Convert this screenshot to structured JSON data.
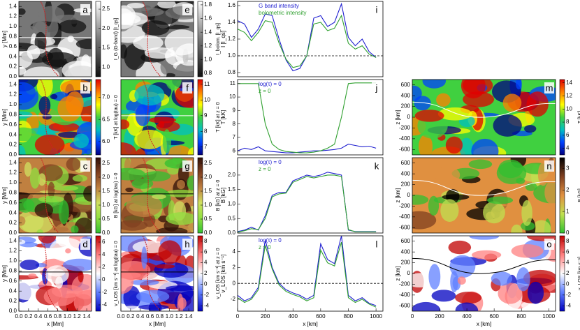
{
  "chart_data": [
    {
      "type": "image",
      "label": "a",
      "ylabel": "y [Mm]",
      "xlim": [
        0,
        1.5
      ],
      "ylim": [
        0,
        1.5
      ],
      "yticks": [
        {
          "value": 0,
          "label": "0.0"
        },
        0.2,
        0.4,
        0.6,
        0.8,
        {
          "value": 1,
          "label": "1.0"
        },
        1.2,
        1.4
      ],
      "slice_y": 0.78,
      "line_color": "#fff",
      "colorbar": {
        "label": "I_G (G-band) [I_qs]",
        "lim": [
          0.75,
          2.7
        ],
        "ticks": [
          {
            "value": 1,
            "label": "1.0"
          },
          1.5,
          {
            "value": 2,
            "label": "2.0"
          },
          2.5
        ],
        "colors": [
          "#111111",
          "#777777",
          "#ffffff"
        ]
      }
    },
    {
      "type": "image",
      "label": "b",
      "ylabel": "y [Mm]",
      "xlim": [
        0,
        1.5
      ],
      "ylim": [
        0,
        1.5
      ],
      "yticks": [
        {
          "value": 0,
          "label": "0.0"
        },
        0.2,
        0.4,
        0.6,
        0.8,
        {
          "value": 1,
          "label": "1.0"
        },
        1.2,
        1.4
      ],
      "slice_y": 0.78,
      "line_color": "#fff",
      "colorbar": {
        "label": "T [kK] at log(tau) = 0",
        "lim": [
          5.7,
          7.4
        ],
        "ticks": [
          {
            "value": 6,
            "label": "6.0"
          },
          6.5,
          {
            "value": 7,
            "label": "7.0"
          }
        ],
        "colors": [
          "#000080",
          "#0040ff",
          "#00c0c0",
          "#40d040",
          "#ffff00",
          "#ff8000",
          "#e00000"
        ]
      }
    },
    {
      "type": "image",
      "label": "c",
      "ylabel": "y [Mm]",
      "xlim": [
        0,
        1.5
      ],
      "ylim": [
        0,
        1.5
      ],
      "yticks": [
        {
          "value": 0,
          "label": "0.0"
        },
        0.2,
        0.4,
        0.6,
        0.8,
        {
          "value": 1,
          "label": "1.0"
        },
        1.2,
        1.4
      ],
      "slice_y": 0.78,
      "line_color": "#000",
      "colorbar": {
        "label": "B [kG] at log(tau) = 0",
        "lim": [
          0,
          2.7
        ],
        "ticks": [
          {
            "value": 0,
            "label": "0.0"
          },
          0.5,
          {
            "value": 1,
            "label": "1.0"
          },
          1.5,
          {
            "value": 2,
            "label": "2.0"
          },
          2.5
        ],
        "colors": [
          "#30c030",
          "#90e040",
          "#d0e060",
          "#c08040",
          "#804020",
          "#301008"
        ]
      }
    },
    {
      "type": "image",
      "label": "d",
      "ylabel": "y [Mm]",
      "xlabel": "x [Mm]",
      "xlim": [
        0,
        1.5
      ],
      "ylim": [
        0,
        1.5
      ],
      "xticks": [
        {
          "value": 0,
          "label": "0.0"
        },
        0.2,
        0.4,
        0.6,
        0.8,
        {
          "value": 1,
          "label": "1.0"
        },
        1.2,
        1.4
      ],
      "yticks": [
        {
          "value": 0,
          "label": "0.0"
        },
        0.2,
        0.4,
        0.6,
        0.8,
        {
          "value": 1,
          "label": "1.0"
        },
        1.2,
        1.4
      ],
      "slice_y": 0.78,
      "line_color": "#000",
      "colorbar": {
        "label": "v_LOS [km s⁻¹] at log(tau) = 0",
        "lim": [
          -5,
          7
        ],
        "ticks": [
          -4,
          -2,
          0,
          2,
          4,
          6
        ],
        "colors": [
          "#0000c0",
          "#6080ff",
          "#ffffff",
          "#ff8080",
          "#c00000"
        ]
      }
    },
    {
      "type": "image",
      "label": "e",
      "xlim": [
        0,
        1.5
      ],
      "ylim": [
        0,
        1.5
      ],
      "slice_y": 0.78,
      "line_color": "#fff",
      "colorbar": {
        "label": "I_bolom. [I_qs]",
        "lim": [
          0.75,
          1.85
        ],
        "ticks": [
          0.8,
          {
            "value": 1,
            "label": "1.0"
          },
          1.2,
          1.4,
          1.6,
          1.8
        ],
        "colors": [
          "#111111",
          "#777777",
          "#ffffff"
        ]
      }
    },
    {
      "type": "image",
      "label": "f",
      "xlim": [
        0,
        1.5
      ],
      "ylim": [
        0,
        1.5
      ],
      "slice_y": 0.78,
      "line_color": "#fff",
      "colorbar": {
        "label": "T [kK] at z = 0",
        "lim": [
          6.5,
          11.3
        ],
        "ticks": [
          7,
          8,
          9,
          10,
          11
        ],
        "colors": [
          "#000080",
          "#0040ff",
          "#00c0c0",
          "#40d040",
          "#ffff00",
          "#ff8000",
          "#e00000"
        ]
      }
    },
    {
      "type": "image",
      "label": "g",
      "xlim": [
        0,
        1.5
      ],
      "ylim": [
        0,
        1.5
      ],
      "slice_y": 0.78,
      "line_color": "#000",
      "colorbar": {
        "label": "B [kG] at z = 0",
        "lim": [
          0,
          2.7
        ],
        "ticks": [
          {
            "value": 0,
            "label": "0.0"
          },
          0.5,
          {
            "value": 1,
            "label": "1.0"
          },
          1.5,
          {
            "value": 2,
            "label": "2.0"
          },
          2.5
        ],
        "colors": [
          "#30c030",
          "#90e040",
          "#d0e060",
          "#c08040",
          "#804020",
          "#301008"
        ]
      }
    },
    {
      "type": "image",
      "label": "h",
      "xlabel": "x [Mm]",
      "xlim": [
        0,
        1.5
      ],
      "ylim": [
        0,
        1.5
      ],
      "xticks": [
        {
          "value": 0,
          "label": "0.0"
        },
        0.2,
        0.4,
        0.6,
        0.8,
        {
          "value": 1,
          "label": "1.0"
        },
        1.2,
        1.4
      ],
      "slice_y": 0.78,
      "line_color": "#000",
      "colorbar": {
        "label": "v_LOS [km s⁻¹] at z = 0",
        "lim": [
          -5,
          9
        ],
        "ticks": [
          -4,
          -2,
          0,
          2,
          4,
          6,
          8
        ],
        "colors": [
          "#0000c0",
          "#6080ff",
          "#ffffff",
          "#ff8080",
          "#c00000"
        ]
      }
    },
    {
      "type": "line",
      "label": "i",
      "ylabel": "I [I_qs]",
      "xlim": [
        0,
        1050
      ],
      "ylim": [
        0.75,
        1.65
      ],
      "hline": 1,
      "yticks": [
        0.8,
        {
          "value": 1,
          "label": "1.0"
        },
        1.2,
        1.4,
        1.6
      ],
      "x": [
        0,
        50,
        100,
        150,
        200,
        250,
        300,
        350,
        400,
        450,
        500,
        550,
        600,
        650,
        700,
        750,
        800,
        850,
        900,
        950,
        1000
      ],
      "series": [
        {
          "name": "G band intensity",
          "color": "#2020d0",
          "values": [
            1.42,
            1.38,
            1.22,
            1.32,
            1.5,
            1.48,
            1.2,
            0.95,
            0.82,
            0.85,
            1.0,
            1.45,
            1.48,
            1.35,
            1.4,
            1.62,
            1.22,
            1.12,
            1.2,
            1.05,
            0.98
          ]
        },
        {
          "name": "bolometric intensity",
          "color": "#30a030",
          "values": [
            1.32,
            1.28,
            1.18,
            1.28,
            1.42,
            1.4,
            1.15,
            0.96,
            0.86,
            0.88,
            1.0,
            1.38,
            1.4,
            1.3,
            1.33,
            1.48,
            1.15,
            1.08,
            1.12,
            1.02,
            0.98
          ]
        }
      ]
    },
    {
      "type": "line",
      "label": "j",
      "ylabel": "T [kK]",
      "xlim": [
        0,
        1050
      ],
      "ylim": [
        5.7,
        11.3
      ],
      "yticks": [
        6,
        7,
        8,
        9,
        10,
        11
      ],
      "x": [
        0,
        50,
        100,
        150,
        200,
        250,
        300,
        350,
        400,
        450,
        500,
        550,
        600,
        650,
        700,
        750,
        800,
        850,
        900,
        950,
        1000
      ],
      "series": [
        {
          "name": "log(τ) = 0",
          "color": "#2020d0",
          "values": [
            6.0,
            6.2,
            6.1,
            6.3,
            6.0,
            5.95,
            5.9,
            5.85,
            5.85,
            5.9,
            5.95,
            6.0,
            6.0,
            6.05,
            6.1,
            6.2,
            6.5,
            6.4,
            6.3,
            6.35,
            6.2
          ]
        },
        {
          "name": "z = 0",
          "color": "#30a030",
          "values": [
            11.0,
            11.0,
            11.0,
            11.0,
            8.0,
            6.5,
            6.1,
            5.95,
            5.9,
            5.85,
            5.85,
            5.9,
            6.0,
            6.2,
            6.5,
            8.5,
            11.0,
            11.05,
            11.05,
            11.05,
            11.05
          ]
        }
      ]
    },
    {
      "type": "line",
      "label": "k",
      "ylabel": "B [kG]",
      "xlim": [
        0,
        1050
      ],
      "ylim": [
        0,
        2.6
      ],
      "yticks": [
        {
          "value": 0,
          "label": "0.0"
        },
        0.5,
        {
          "value": 1,
          "label": "1.0"
        },
        1.5,
        {
          "value": 2,
          "label": "2.0"
        }
      ],
      "x": [
        0,
        50,
        100,
        150,
        200,
        250,
        300,
        350,
        400,
        450,
        500,
        550,
        600,
        650,
        700,
        750,
        800,
        850,
        900,
        950,
        1000
      ],
      "series": [
        {
          "name": "log(τ) = 0",
          "color": "#2020d0",
          "values": [
            0.05,
            0.1,
            0.2,
            0.1,
            0.6,
            1.3,
            1.4,
            1.4,
            1.8,
            1.9,
            2.0,
            1.95,
            2.0,
            2.1,
            2.05,
            2.0,
            0.1,
            0.05,
            0.05,
            0.05,
            0.05
          ]
        },
        {
          "name": "z = 0",
          "color": "#30a030",
          "values": [
            0.03,
            0.08,
            0.15,
            0.12,
            0.5,
            1.25,
            1.35,
            1.38,
            1.75,
            1.85,
            1.95,
            1.9,
            1.95,
            2.0,
            2.0,
            1.95,
            0.12,
            0.04,
            0.04,
            0.04,
            0.04
          ]
        }
      ]
    },
    {
      "type": "line",
      "label": "l",
      "ylabel": "v_LOS [km s⁻¹]",
      "xlabel": "x [km]",
      "xlim": [
        0,
        1050
      ],
      "ylim": [
        -3.5,
        6
      ],
      "hline": 0,
      "xticks": [
        0,
        200,
        400,
        600,
        800,
        1000
      ],
      "yticks": [
        -2,
        0,
        2,
        4
      ],
      "x": [
        0,
        50,
        100,
        150,
        200,
        250,
        300,
        350,
        400,
        450,
        500,
        550,
        600,
        650,
        700,
        750,
        800,
        850,
        900,
        950,
        1000
      ],
      "series": [
        {
          "name": "log(τ) = 0",
          "color": "#2020d0",
          "values": [
            -1.5,
            -2.2,
            -1.8,
            -0.5,
            5.5,
            2.0,
            0.0,
            -0.8,
            -1.2,
            -1.5,
            -2.0,
            -1.5,
            5.0,
            3.0,
            2.5,
            6.0,
            -1.5,
            -2.2,
            -1.8,
            -2.5,
            -2.8
          ]
        },
        {
          "name": "z = 0",
          "color": "#30a030",
          "values": [
            -1.8,
            -2.4,
            -2.0,
            -0.8,
            4.8,
            1.8,
            -0.2,
            -1.0,
            -1.4,
            -1.7,
            -2.2,
            -1.8,
            4.2,
            2.6,
            2.2,
            5.2,
            -1.8,
            -2.4,
            -2.0,
            -2.6,
            -3.0
          ]
        }
      ]
    },
    {
      "type": "image",
      "label": "m",
      "ylabel": "z [km]",
      "xlim": [
        0,
        1050
      ],
      "ylim": [
        -700,
        700
      ],
      "line_color": "#fff",
      "yticks": [
        -600,
        -400,
        -200,
        0,
        200,
        400,
        600
      ],
      "colorbar": {
        "label": "T [kK]",
        "lim": [
          3,
          14.5
        ],
        "ticks": [
          4,
          6,
          8,
          10,
          12,
          14
        ],
        "colors": [
          "#000080",
          "#0040ff",
          "#00c0c0",
          "#40d040",
          "#ffff00",
          "#ff8000",
          "#e00000"
        ]
      }
    },
    {
      "type": "image",
      "label": "n",
      "ylabel": "z [km]",
      "xlim": [
        0,
        1050
      ],
      "ylim": [
        -700,
        700
      ],
      "line_color": "#fff",
      "yticks": [
        -600,
        -400,
        -200,
        0,
        200,
        400,
        600
      ],
      "colorbar": {
        "label": "B [kG]",
        "lim": [
          0,
          3.5
        ],
        "ticks": [
          0,
          1,
          2,
          3
        ],
        "colors": [
          "#30c030",
          "#c0e050",
          "#e09040",
          "#804020",
          "#000000"
        ]
      }
    },
    {
      "type": "image",
      "label": "o",
      "ylabel": "z [km]",
      "xlabel": "x [km]",
      "xlim": [
        0,
        1050
      ],
      "ylim": [
        -700,
        700
      ],
      "line_color": "#000",
      "xticks": [
        0,
        200,
        400,
        600,
        800,
        1000
      ],
      "yticks": [
        -600,
        -400,
        -200,
        0,
        200,
        400,
        600
      ],
      "colorbar": {
        "label": "v_LOS [km s⁻¹]",
        "lim": [
          -5,
          9
        ],
        "ticks": [
          -4,
          -2,
          0,
          2,
          4,
          6,
          8
        ],
        "colors": [
          "#0000c0",
          "#6080ff",
          "#ffffff",
          "#ff8080",
          "#c00000"
        ]
      }
    }
  ]
}
